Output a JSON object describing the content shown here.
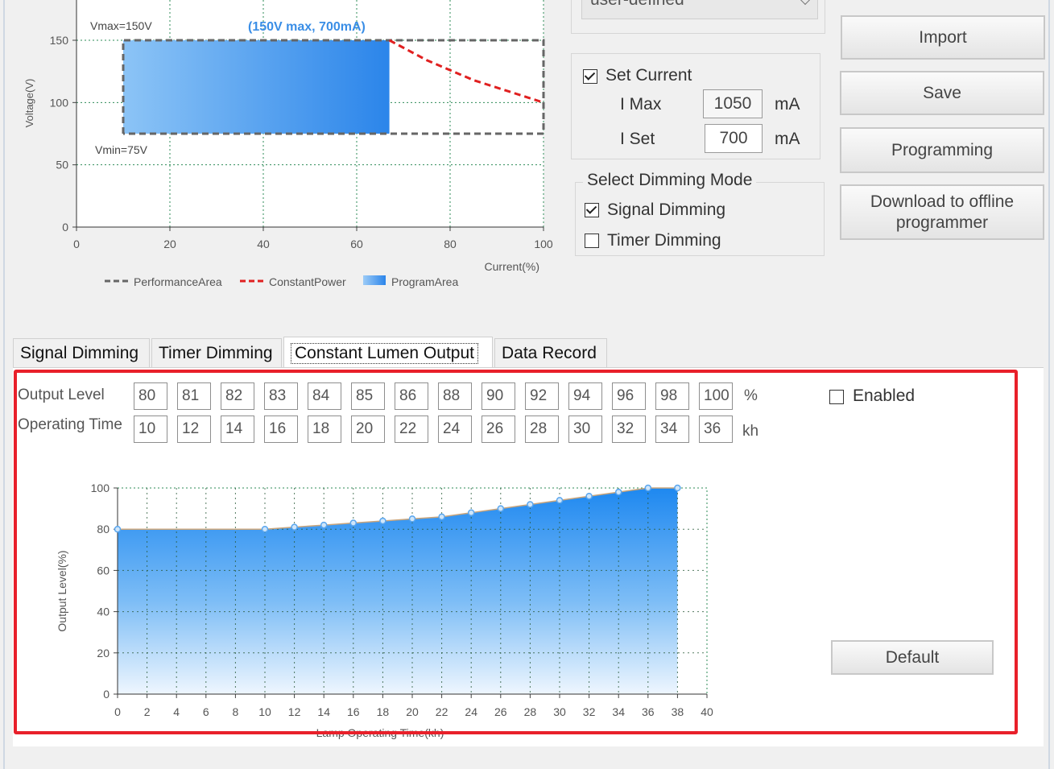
{
  "dropdown": {
    "value": "user-defined"
  },
  "current_group": {
    "set_current_label": "Set Current",
    "set_current_checked": true,
    "imax_label": "I Max",
    "imax_value": "1050",
    "imax_unit": "mA",
    "iset_label": "I Set",
    "iset_value": "700",
    "iset_unit": "mA"
  },
  "dimming_group": {
    "title": "Select Dimming Mode",
    "signal_label": "Signal Dimming",
    "signal_checked": true,
    "timer_label": "Timer Dimming",
    "timer_checked": false
  },
  "buttons": {
    "import": "Import",
    "save": "Save",
    "programming": "Programming",
    "download_line1": "Download to offline",
    "download_line2": "programmer",
    "default": "Default"
  },
  "tabs": [
    "Signal Dimming",
    "Timer Dimming",
    "Constant Lumen Output",
    "Data Record"
  ],
  "active_tab": 2,
  "clo": {
    "output_level_label": "Output Level",
    "operating_time_label": "Operating Time",
    "output_levels": [
      "80",
      "81",
      "82",
      "83",
      "84",
      "85",
      "86",
      "88",
      "90",
      "92",
      "94",
      "96",
      "98",
      "100"
    ],
    "operating_times": [
      "10",
      "12",
      "14",
      "16",
      "18",
      "20",
      "22",
      "24",
      "26",
      "28",
      "30",
      "32",
      "34",
      "36"
    ],
    "level_unit": "%",
    "time_unit": "kh",
    "enabled_label": "Enabled",
    "enabled_checked": false
  },
  "chart_data": [
    {
      "type": "area",
      "annotation": "(150V max, 700mA)",
      "vmax_label": "Vmax=150V",
      "vmin_label": "Vmin=75V",
      "xlabel": "Current(%)",
      "ylabel": "Voltage(V)",
      "xlim": [
        0,
        100
      ],
      "ylim": [
        0,
        150
      ],
      "xticks": [
        0,
        20,
        40,
        60,
        80,
        100
      ],
      "yticks": [
        0,
        50,
        100,
        150
      ],
      "grid": true,
      "legend_position": "bottom",
      "series": [
        {
          "name": "PerformanceArea",
          "color": "#666666",
          "style": "dashed",
          "x": [
            10,
            10,
            100,
            100,
            67,
            10
          ],
          "y": [
            75,
            150,
            150,
            75,
            75,
            75
          ]
        },
        {
          "name": "ConstantPower",
          "color": "#e02020",
          "style": "dashed",
          "x": [
            67,
            75,
            85,
            100
          ],
          "y": [
            150,
            134,
            118,
            100
          ]
        },
        {
          "name": "ProgramArea",
          "color": "#3a8ee6",
          "style": "fill",
          "x": [
            10,
            67
          ],
          "y": [
            75,
            150
          ]
        }
      ]
    },
    {
      "type": "area",
      "xlabel": "Lamp Operating Time(kh)",
      "ylabel": "Output Level(%)",
      "xlim": [
        0,
        40
      ],
      "ylim": [
        0,
        100
      ],
      "xticks": [
        0,
        2,
        4,
        6,
        8,
        10,
        12,
        14,
        16,
        18,
        20,
        22,
        24,
        26,
        28,
        30,
        32,
        34,
        36,
        38,
        40
      ],
      "yticks": [
        0,
        20,
        40,
        60,
        80,
        100
      ],
      "grid": true,
      "color": "#1e88f0",
      "x": [
        0,
        10,
        12,
        14,
        16,
        18,
        20,
        22,
        24,
        26,
        28,
        30,
        32,
        34,
        36,
        38
      ],
      "y": [
        80,
        80,
        81,
        82,
        83,
        84,
        85,
        86,
        88,
        90,
        92,
        94,
        96,
        98,
        100,
        100
      ]
    }
  ]
}
